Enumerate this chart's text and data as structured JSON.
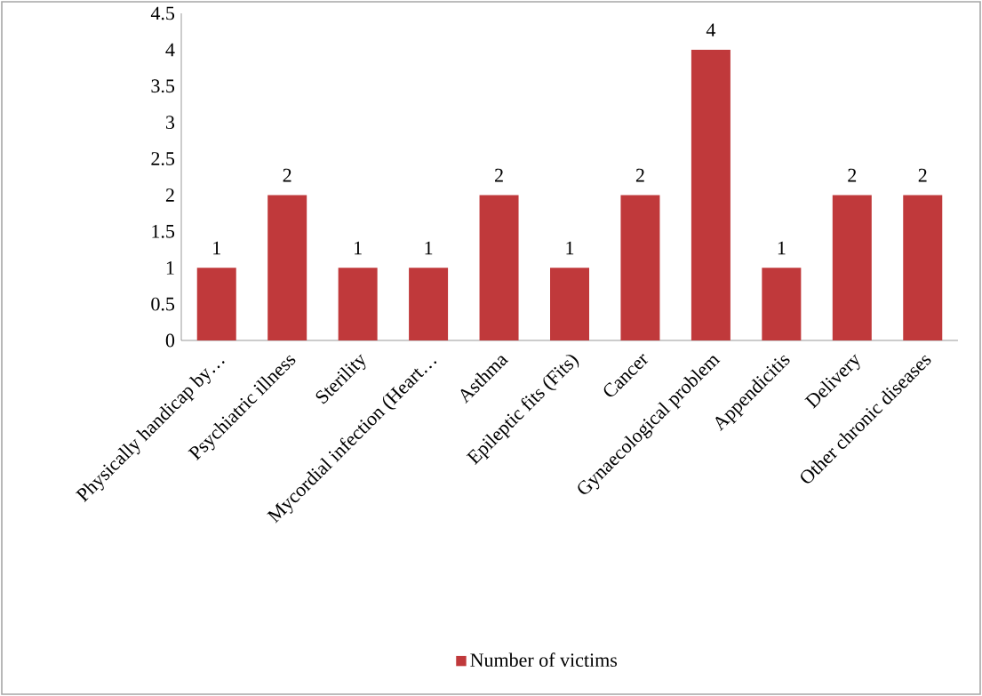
{
  "chart_data": {
    "type": "bar",
    "categories": [
      "Physically handicap by…",
      "Psychiatric illness",
      "Sterility",
      "Mycordial infection (Heart…",
      "Asthma",
      "Epileptic fits (Fits)",
      "Cancer",
      "Gynaecological problem",
      "Appendicitis",
      "Delivery",
      "Other chronic diseases"
    ],
    "series": [
      {
        "name": "Number of victims",
        "color": "#c0393b",
        "values": [
          1,
          2,
          1,
          1,
          2,
          1,
          2,
          4,
          1,
          2,
          2
        ]
      }
    ],
    "ylim": [
      0,
      4.5
    ],
    "yticks": [
      0,
      0.5,
      1,
      1.5,
      2,
      2.5,
      3,
      3.5,
      4,
      4.5
    ],
    "data_labels": true,
    "legend": "bottom",
    "grid": false
  }
}
